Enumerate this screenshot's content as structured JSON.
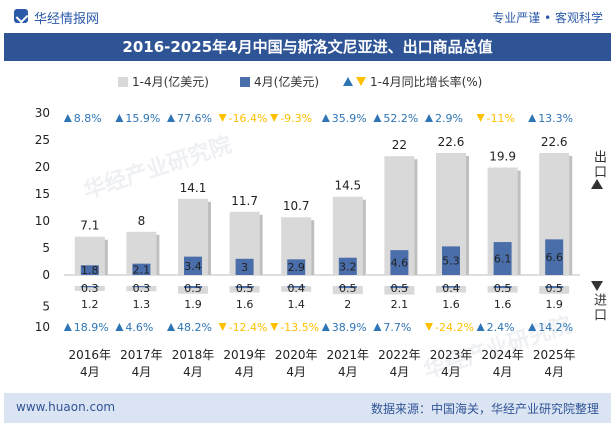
{
  "header": {
    "brand": "华经情报网",
    "tagline": "专业严谨 • 客观科学"
  },
  "title": "2016-2025年4月中国与斯洛文尼亚进、出口商品总值",
  "legend": {
    "cumulative": "1-4月(亿美元)",
    "month": "4月(亿美元)",
    "growth": "1-4月同比增长率(%)"
  },
  "side_labels": {
    "export": "出口",
    "import": "进口"
  },
  "footer": {
    "url": "www.huaon.com",
    "source": "数据来源：中国海关，华经产业研究院整理"
  },
  "watermark": "华经产业研究院",
  "colors": {
    "title_bg": "#2f5496",
    "cumulative_bar": "#d9d9d9",
    "month_bar": "#4a6ea9",
    "up_arrow": "#2e75b6",
    "down_arrow": "#ffc000"
  },
  "chart_data": {
    "type": "bar",
    "categories": [
      "2016年\n4月",
      "2017年\n4月",
      "2018年\n4月",
      "2019年\n4月",
      "2020年\n4月",
      "2021年\n4月",
      "2022年\n4月",
      "2023年\n4月",
      "2024年\n4月",
      "2025年\n4月"
    ],
    "export": {
      "cumulative": [
        7.1,
        8,
        14.1,
        11.7,
        10.7,
        14.5,
        22,
        22.6,
        19.9,
        22.6
      ],
      "month": [
        1.8,
        2.1,
        3.4,
        3,
        2.9,
        3.2,
        4.6,
        5.3,
        6.1,
        6.6
      ],
      "growth": [
        "8.8%",
        "15.9%",
        "77.6%",
        "-16.4%",
        "-9.3%",
        "35.9%",
        "52.2%",
        "2.9%",
        "-11%",
        "13.3%"
      ],
      "growth_dir": [
        "up",
        "up",
        "up",
        "down",
        "down",
        "up",
        "up",
        "up",
        "down",
        "up"
      ]
    },
    "import": {
      "month": [
        0.3,
        0.3,
        0.5,
        0.5,
        0.4,
        0.5,
        0.5,
        0.4,
        0.5,
        0.5
      ],
      "cumulative": [
        1.2,
        1.3,
        1.9,
        1.6,
        1.4,
        2,
        2.1,
        1.6,
        1.6,
        1.9
      ],
      "growth": [
        "18.9%",
        "4.6%",
        "48.2%",
        "-12.4%",
        "-13.5%",
        "38.9%",
        "7.7%",
        "-24.2%",
        "2.4%",
        "14.2%"
      ],
      "growth_dir": [
        "up",
        "up",
        "up",
        "down",
        "down",
        "up",
        "up",
        "down",
        "up",
        "up"
      ]
    },
    "y_ticks_export": [
      "30",
      "25",
      "20",
      "15",
      "10",
      "5",
      "0"
    ],
    "y_ticks_import": [
      "5",
      "10"
    ],
    "ylim_export": [
      0,
      30
    ],
    "ylim_import": [
      0,
      10
    ]
  }
}
